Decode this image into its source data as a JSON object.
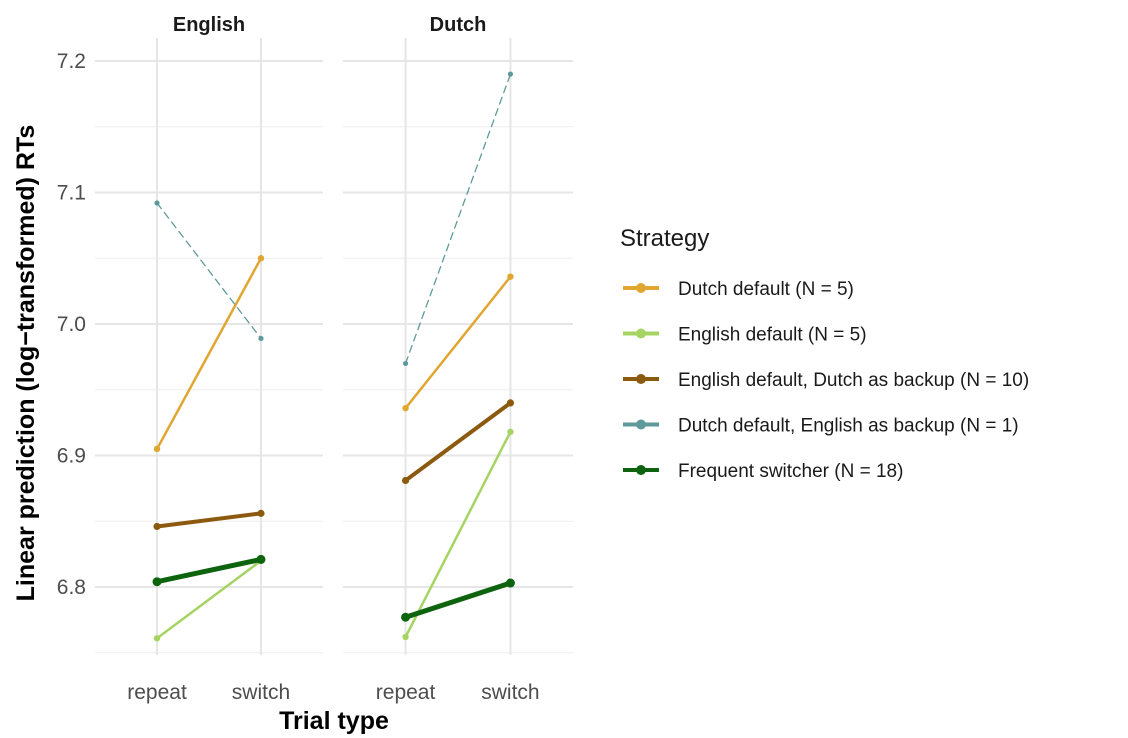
{
  "chart_data": {
    "type": "line",
    "ylabel": "Linear prediction (log−transformed) RTs",
    "xlabel": "Trial type",
    "categories": [
      "repeat",
      "switch"
    ],
    "facets": [
      "English",
      "Dutch"
    ],
    "ylim": [
      6.745,
      7.21
    ],
    "yticks": [
      6.8,
      6.9,
      7.0,
      7.1,
      7.2
    ],
    "ytick_labels": [
      "6.8",
      "6.9",
      "7.0",
      "7.1",
      "7.2"
    ],
    "grid": true,
    "legend": {
      "title": "Strategy",
      "position": "right"
    },
    "series": [
      {
        "name": "Dutch default (N = 5)",
        "color": "#E0A630",
        "width": 2.5,
        "dashed": false,
        "values": {
          "English": [
            6.905,
            7.05
          ],
          "Dutch": [
            6.936,
            7.036
          ]
        }
      },
      {
        "name": "English default (N = 5)",
        "color": "#A5D463",
        "width": 2.5,
        "dashed": false,
        "values": {
          "English": [
            6.761,
            6.82
          ],
          "Dutch": [
            6.762,
            6.918
          ]
        }
      },
      {
        "name": "English default, Dutch as backup (N = 10)",
        "color": "#8C5A0F",
        "width": 4,
        "dashed": false,
        "values": {
          "English": [
            6.846,
            6.856
          ],
          "Dutch": [
            6.881,
            6.94
          ]
        }
      },
      {
        "name": "Dutch default, English as backup (N = 1)",
        "color": "#5F9A9A",
        "width": 1.3,
        "dashed": true,
        "values": {
          "English": [
            7.092,
            6.989
          ],
          "Dutch": [
            6.97,
            7.19
          ]
        }
      },
      {
        "name": "Frequent switcher (N = 18)",
        "color": "#0E640E",
        "width": 5,
        "dashed": false,
        "values": {
          "English": [
            6.804,
            6.821
          ],
          "Dutch": [
            6.777,
            6.803
          ]
        }
      }
    ]
  }
}
